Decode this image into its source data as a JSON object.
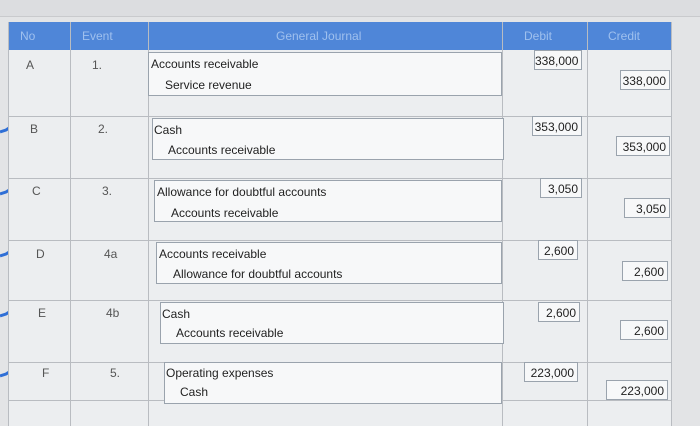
{
  "table": {
    "headers": {
      "no": "No",
      "event": "Event",
      "journal": "General Journal",
      "debit": "Debit",
      "credit": "Credit"
    },
    "rows": [
      {
        "no": "A",
        "event": "1.",
        "debit_account": "Accounts receivable",
        "credit_account": "Service revenue",
        "debit": "338,000",
        "credit": "338,000"
      },
      {
        "no": "B",
        "event": "2.",
        "debit_account": "Cash",
        "credit_account": "Accounts receivable",
        "debit": "353,000",
        "credit": "353,000"
      },
      {
        "no": "C",
        "event": "3.",
        "debit_account": "Allowance for doubtful accounts",
        "credit_account": "Accounts receivable",
        "debit": "3,050",
        "credit": "3,050"
      },
      {
        "no": "D",
        "event": "4a",
        "debit_account": "Accounts receivable",
        "credit_account": "Allowance for doubtful accounts",
        "debit": "2,600",
        "credit": "2,600"
      },
      {
        "no": "E",
        "event": "4b",
        "debit_account": "Cash",
        "credit_account": "Accounts receivable",
        "debit": "2,600",
        "credit": "2,600"
      },
      {
        "no": "F",
        "event": "5.",
        "debit_account": "Operating expenses",
        "credit_account": "Cash",
        "debit": "223,000",
        "credit": "223,000"
      }
    ]
  },
  "colors": {
    "header_bg": "#4f86d8",
    "header_text": "#9fc0ee",
    "check_icon": "#2f6fd6"
  }
}
